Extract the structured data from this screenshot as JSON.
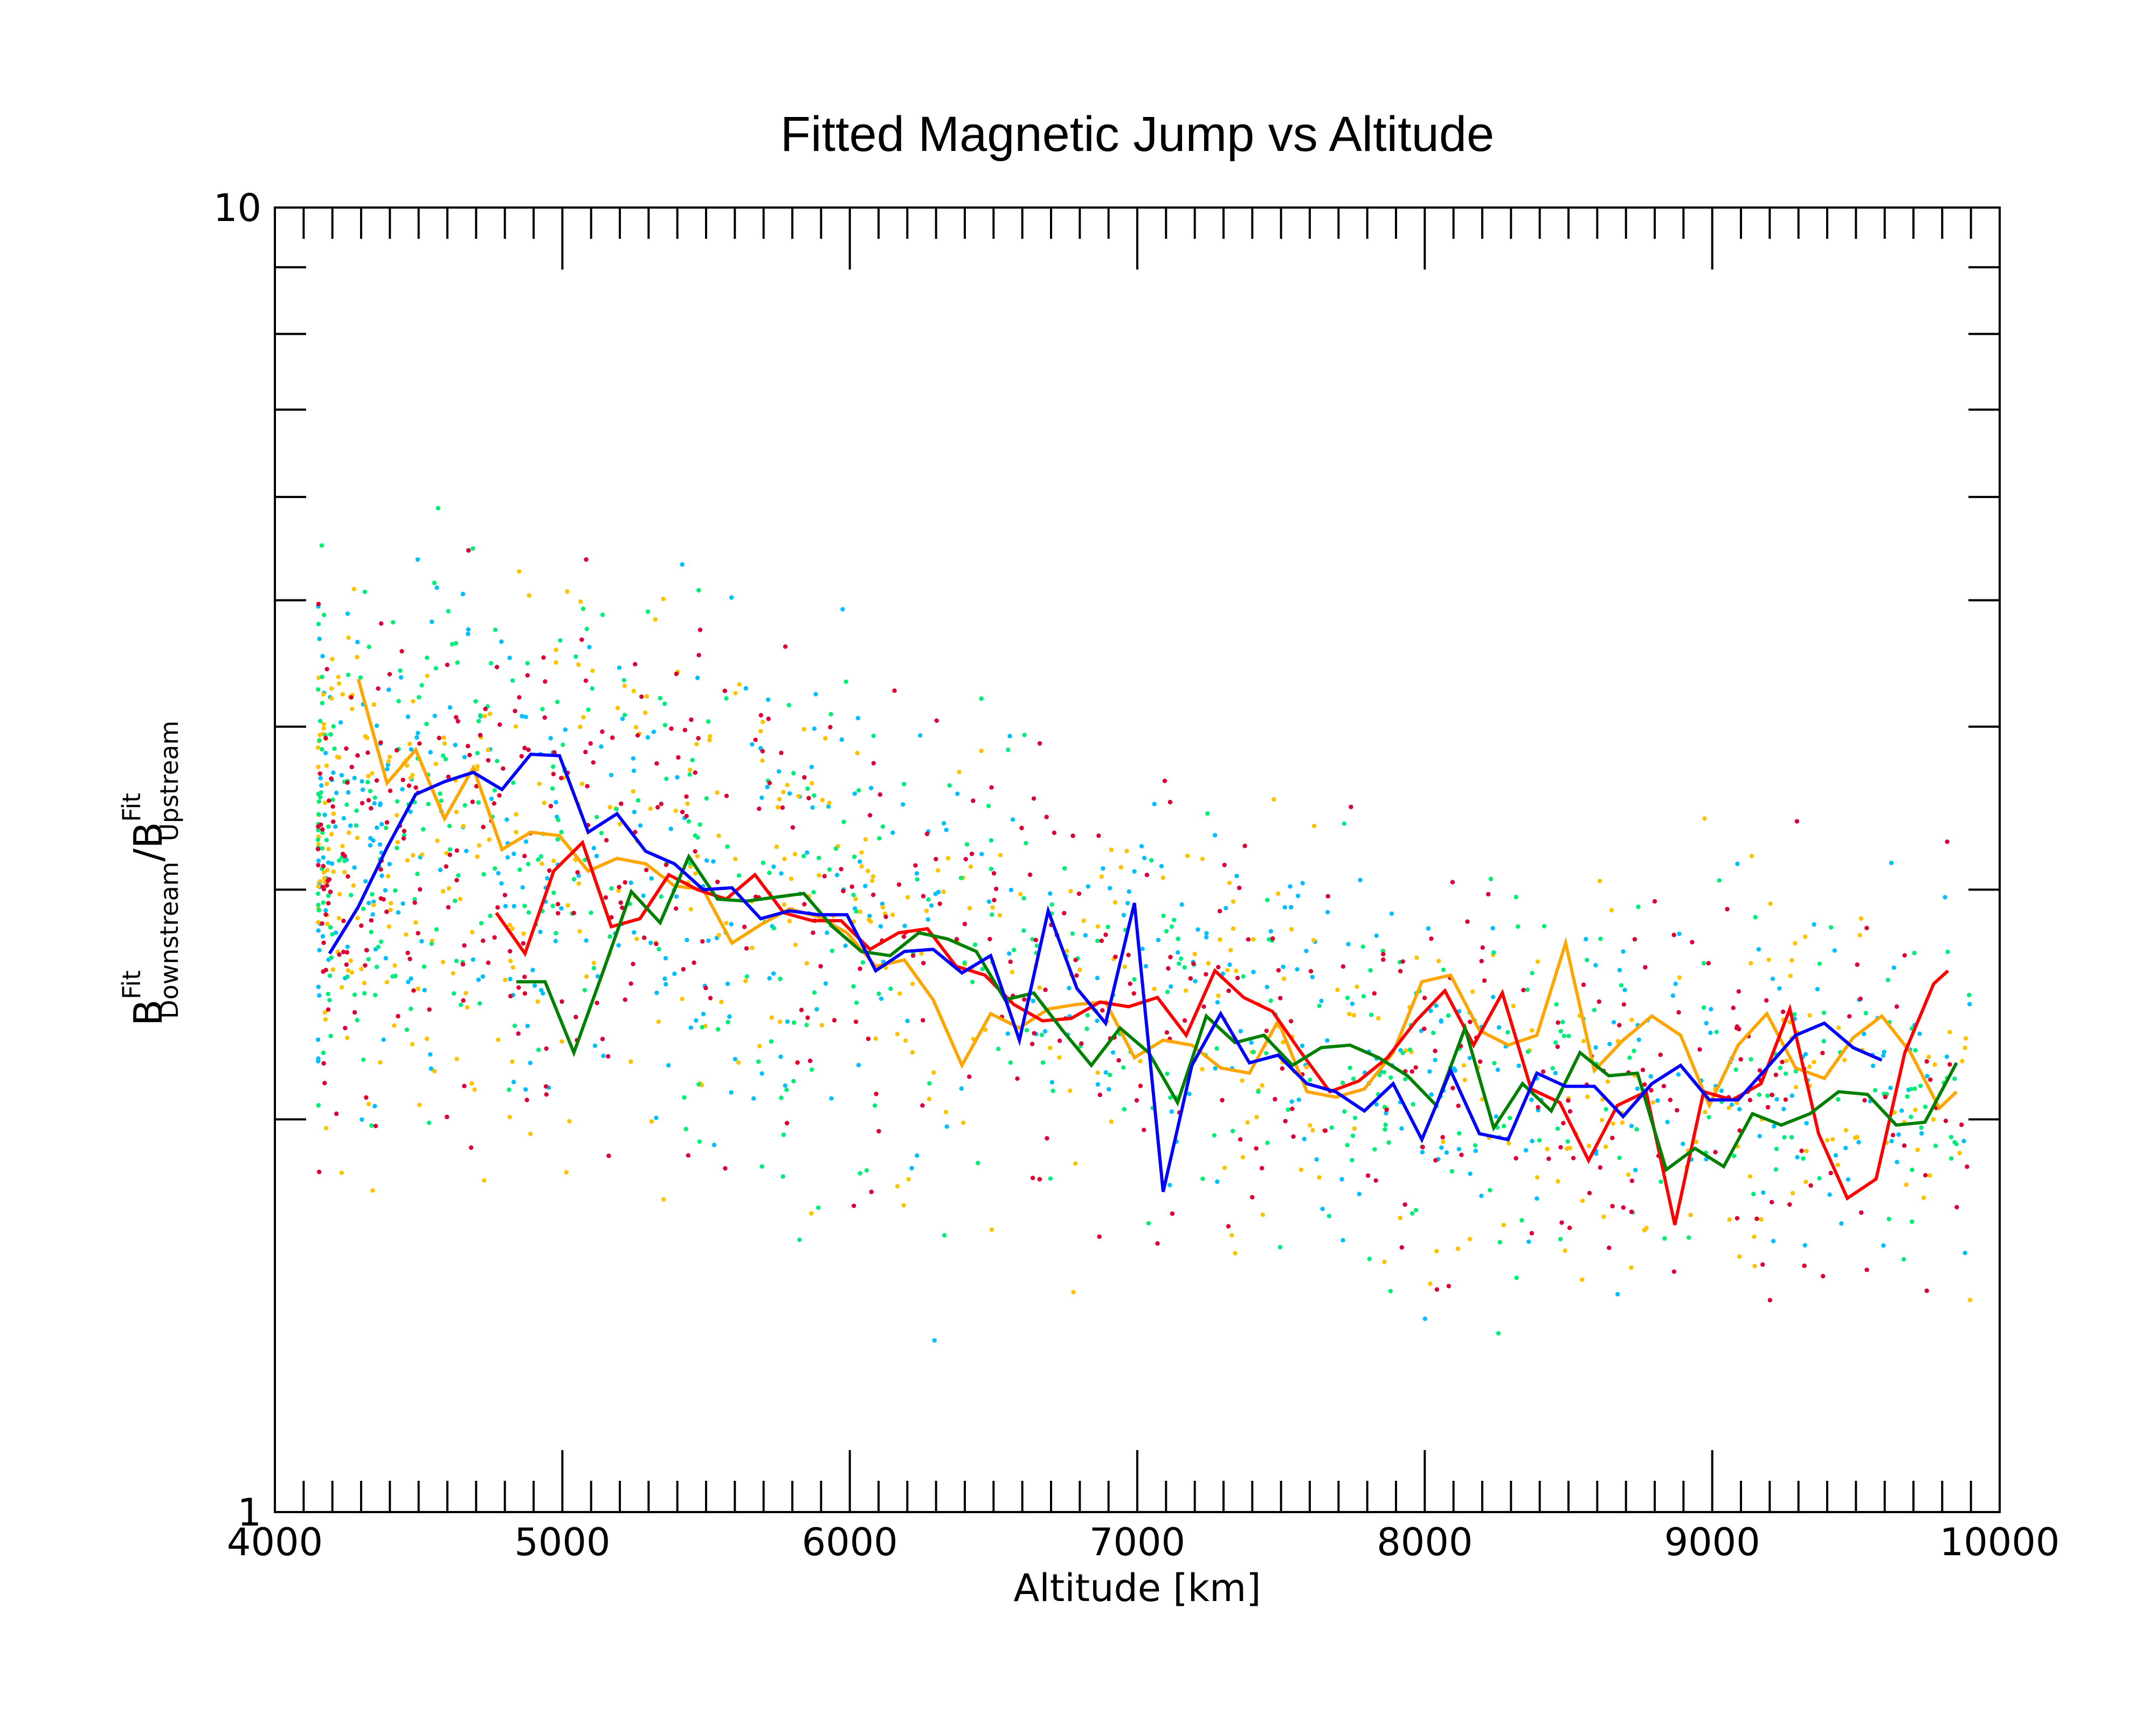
{
  "chart_data": {
    "type": "line",
    "title": "Fitted Magnetic Jump vs Altitude",
    "xlabel": "Altitude [km]",
    "ylabel": {
      "base1": "B",
      "sup1": "Fit",
      "sub1": "Downstream",
      "slash": "/B",
      "sup2": "Fit",
      "sub2": "Upstream"
    },
    "x_scale": "linear",
    "y_scale": "log",
    "xlim": [
      4000,
      10000
    ],
    "ylim": [
      1,
      10
    ],
    "x_ticks": [
      {
        "value": 4000,
        "label": "4000"
      },
      {
        "value": 5000,
        "label": "5000"
      },
      {
        "value": 6000,
        "label": "6000"
      },
      {
        "value": 7000,
        "label": "7000"
      },
      {
        "value": 8000,
        "label": "8000"
      },
      {
        "value": 9000,
        "label": "9000"
      },
      {
        "value": 10000,
        "label": "10000"
      }
    ],
    "y_ticks": [
      {
        "value": 1,
        "label": "1"
      },
      {
        "value": 10,
        "label": "10"
      }
    ],
    "x_minor_step": 100,
    "y_minor": [
      2,
      3,
      4,
      5,
      6,
      7,
      8,
      9
    ],
    "grid": false,
    "scatter_colors": [
      "#00bfff",
      "#ffc200",
      "#00ee77",
      "#dd0033"
    ],
    "scatter_count_per_color": 520,
    "series": [
      {
        "color": "#ffa500",
        "x": [
          4290,
          4390,
          4490,
          4590,
          4690,
          4790,
          4890,
          4990,
          5090,
          5190,
          5290,
          5390,
          5490,
          5590,
          5690,
          5790,
          5890,
          5990,
          6090,
          6190,
          6290,
          6390,
          6490,
          6590,
          6690,
          6790,
          6890,
          6990,
          7090,
          7190,
          7290,
          7390,
          7490,
          7590,
          7690,
          7790,
          7890,
          7990,
          8090,
          8190,
          8290,
          8390,
          8490,
          8590,
          8690,
          8790,
          8890,
          8990,
          9090,
          9190,
          9290,
          9390,
          9490,
          9590,
          9690,
          9790,
          9850
        ],
        "y": [
          4.35,
          3.62,
          3.84,
          3.4,
          3.72,
          3.22,
          3.32,
          3.3,
          3.1,
          3.17,
          3.14,
          3.02,
          3.0,
          2.73,
          2.82,
          2.9,
          2.86,
          2.78,
          2.62,
          2.65,
          2.47,
          2.2,
          2.41,
          2.35,
          2.43,
          2.45,
          2.46,
          2.23,
          2.3,
          2.28,
          2.19,
          2.17,
          2.38,
          2.1,
          2.08,
          2.11,
          2.25,
          2.55,
          2.58,
          2.34,
          2.28,
          2.32,
          2.73,
          2.18,
          2.3,
          2.4,
          2.32,
          2.05,
          2.28,
          2.41,
          2.19,
          2.15,
          2.31,
          2.4,
          2.25,
          2.04,
          2.1
        ]
      },
      {
        "color": "#ff0000",
        "x": [
          4770,
          4870,
          4970,
          5070,
          5170,
          5270,
          5370,
          5470,
          5570,
          5670,
          5770,
          5870,
          5970,
          6070,
          6170,
          6270,
          6370,
          6470,
          6570,
          6670,
          6770,
          6870,
          6970,
          7070,
          7170,
          7270,
          7370,
          7470,
          7570,
          7670,
          7770,
          7870,
          7970,
          8070,
          8170,
          8270,
          8370,
          8470,
          8570,
          8670,
          8770,
          8870,
          8970,
          9070,
          9170,
          9270,
          9370,
          9470,
          9570,
          9670,
          9770,
          9820
        ],
        "y": [
          2.88,
          2.68,
          3.1,
          3.26,
          2.81,
          2.85,
          3.08,
          3.0,
          2.95,
          3.08,
          2.88,
          2.84,
          2.84,
          2.7,
          2.78,
          2.8,
          2.62,
          2.58,
          2.45,
          2.38,
          2.39,
          2.46,
          2.44,
          2.48,
          2.32,
          2.6,
          2.48,
          2.42,
          2.25,
          2.1,
          2.14,
          2.23,
          2.38,
          2.51,
          2.28,
          2.5,
          2.11,
          2.06,
          1.86,
          2.05,
          2.1,
          1.66,
          2.1,
          2.07,
          2.13,
          2.43,
          1.95,
          1.74,
          1.8,
          2.25,
          2.54,
          2.6
        ]
      },
      {
        "color": "#008000",
        "x": [
          4840,
          4940,
          5040,
          5140,
          5240,
          5340,
          5440,
          5540,
          5640,
          5740,
          5840,
          5940,
          6040,
          6140,
          6240,
          6340,
          6440,
          6540,
          6640,
          6740,
          6840,
          6940,
          7040,
          7140,
          7240,
          7340,
          7440,
          7540,
          7640,
          7740,
          7840,
          7940,
          8040,
          8140,
          8240,
          8340,
          8440,
          8540,
          8640,
          8740,
          8840,
          8940,
          9040,
          9140,
          9240,
          9340,
          9440,
          9540,
          9640,
          9740,
          9850
        ],
        "y": [
          2.55,
          2.55,
          2.25,
          2.59,
          2.99,
          2.83,
          3.18,
          2.95,
          2.94,
          2.96,
          2.98,
          2.81,
          2.69,
          2.67,
          2.78,
          2.75,
          2.69,
          2.47,
          2.5,
          2.34,
          2.2,
          2.35,
          2.25,
          2.06,
          2.4,
          2.29,
          2.32,
          2.2,
          2.27,
          2.28,
          2.23,
          2.16,
          2.05,
          2.35,
          1.97,
          2.13,
          2.03,
          2.25,
          2.16,
          2.17,
          1.83,
          1.9,
          1.84,
          2.02,
          1.98,
          2.02,
          2.1,
          2.09,
          1.98,
          1.99,
          2.21
        ]
      },
      {
        "color": "#0000ff",
        "x": [
          4190,
          4290,
          4390,
          4490,
          4590,
          4690,
          4790,
          4890,
          4990,
          5090,
          5190,
          5290,
          5390,
          5490,
          5590,
          5690,
          5790,
          5890,
          5990,
          6090,
          6190,
          6290,
          6390,
          6490,
          6590,
          6690,
          6790,
          6890,
          6990,
          7090,
          7190,
          7290,
          7390,
          7490,
          7590,
          7690,
          7790,
          7890,
          7990,
          8090,
          8190,
          8290,
          8390,
          8490,
          8590,
          8690,
          8790,
          8890,
          8990,
          9090,
          9190,
          9290,
          9390,
          9490,
          9590
        ],
        "y": [
          2.68,
          2.91,
          3.23,
          3.55,
          3.63,
          3.69,
          3.58,
          3.81,
          3.8,
          3.32,
          3.43,
          3.21,
          3.14,
          3.0,
          3.01,
          2.85,
          2.89,
          2.87,
          2.87,
          2.6,
          2.69,
          2.7,
          2.59,
          2.67,
          2.3,
          2.89,
          2.52,
          2.37,
          2.93,
          1.76,
          2.2,
          2.41,
          2.21,
          2.24,
          2.13,
          2.1,
          2.03,
          2.13,
          1.93,
          2.18,
          1.95,
          1.93,
          2.17,
          2.12,
          2.12,
          2.01,
          2.13,
          2.2,
          2.07,
          2.07,
          2.19,
          2.32,
          2.37,
          2.27,
          2.22
        ]
      }
    ]
  }
}
